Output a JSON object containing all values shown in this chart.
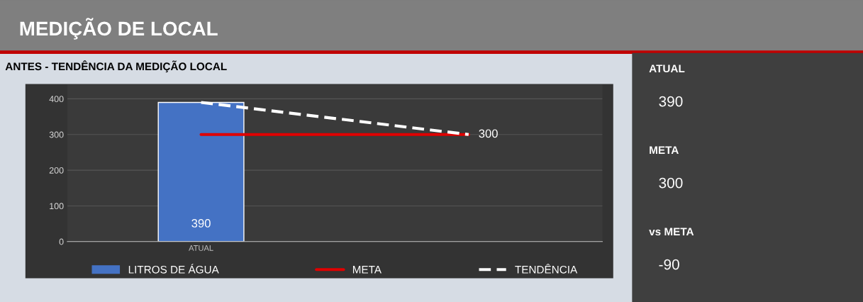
{
  "chart_data": [
    {
      "type": "bar",
      "title": "MEDIÇÃO DE LOCAL",
      "subtitle": "ANTES - TENDÊNCIA DA MEDIÇÃO LOCAL",
      "categories": [
        "ATUAL",
        null
      ],
      "series": [
        {
          "name": "LITROS DE ÁGUA",
          "type": "bar",
          "color": "#4472c4",
          "values": [
            390,
            null
          ],
          "value_labels": [
            "390",
            null
          ]
        },
        {
          "name": "META",
          "type": "line",
          "color": "#e00000",
          "values": [
            300,
            300
          ]
        },
        {
          "name": "TENDÊNCIA",
          "type": "line",
          "color": "#ffffff",
          "line_style": "dashed",
          "values": [
            390,
            300
          ],
          "value_labels": [
            null,
            "300"
          ]
        }
      ],
      "ylim": [
        0,
        440
      ],
      "yticks": [
        0,
        100,
        200,
        300,
        400
      ],
      "grid": "y",
      "legend": "bottom"
    },
    {
      "type": "other",
      "annotations": [
        "ATUAL",
        "390",
        "META",
        "300",
        "vs META",
        "-90"
      ]
    }
  ]
}
